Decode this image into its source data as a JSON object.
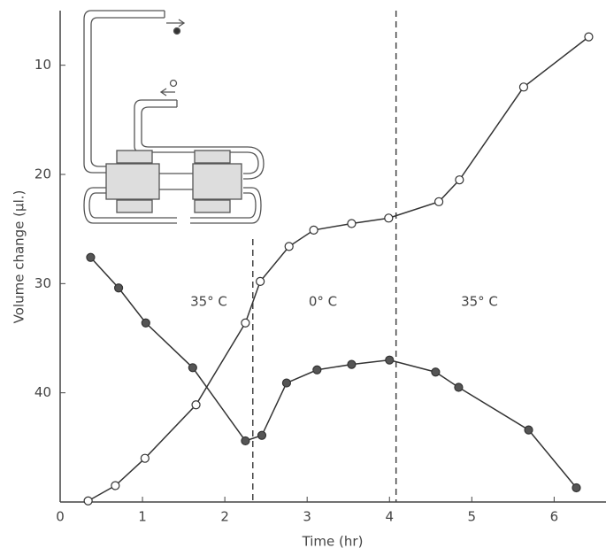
{
  "chart_data": {
    "type": "line",
    "xlabel": "Time (hr)",
    "ylabel": "Volume change (µl.)",
    "xlim": [
      0,
      6.63
    ],
    "ylim": [
      5,
      50
    ],
    "invert_y": true,
    "xticks": [
      0,
      1,
      2,
      3,
      4,
      5,
      6
    ],
    "yticks": [
      10,
      20,
      30,
      40
    ],
    "vlines": [
      2.34,
      4.08
    ],
    "annotations": [
      "35° C",
      "0° C",
      "35° C"
    ],
    "series": [
      {
        "color": "#333333",
        "marker_fill": "#ffffff",
        "x": [
          0.34,
          0.67,
          1.03,
          1.65,
          2.25,
          2.43,
          2.78,
          3.08,
          3.54,
          3.99,
          4.6,
          4.85,
          5.63,
          6.42
        ],
        "values": [
          49.9,
          48.5,
          46.0,
          41.1,
          33.6,
          29.8,
          26.6,
          25.1,
          24.5,
          24.0,
          22.5,
          20.5,
          12.0,
          7.4
        ]
      },
      {
        "color": "#333333",
        "marker_fill": "#555555",
        "x": [
          0.37,
          0.71,
          1.04,
          1.61,
          2.25,
          2.45,
          2.75,
          3.12,
          3.54,
          4.0,
          4.56,
          4.84,
          5.69,
          6.27
        ],
        "values": [
          27.6,
          30.4,
          33.6,
          37.7,
          44.4,
          43.9,
          39.1,
          37.9,
          37.4,
          37.0,
          38.1,
          39.5,
          43.4,
          48.7
        ]
      }
    ]
  }
}
